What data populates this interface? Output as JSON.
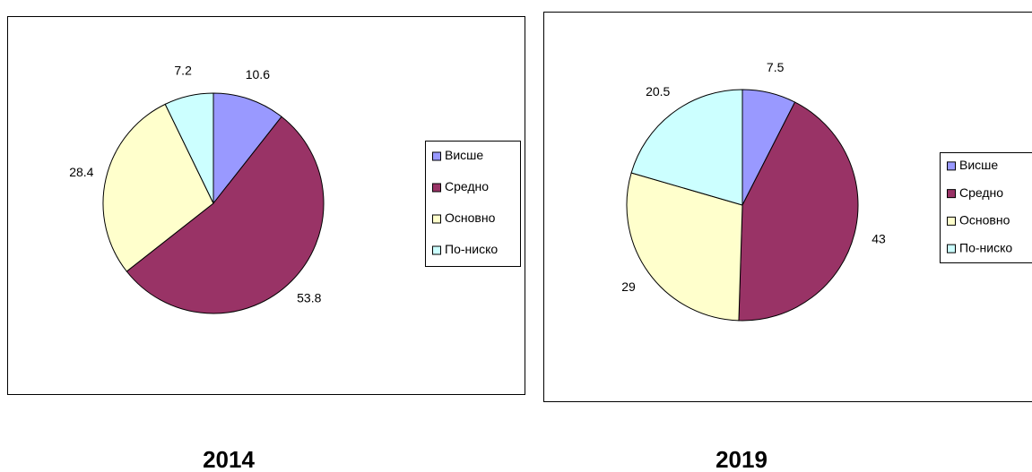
{
  "chart_data": [
    {
      "type": "pie",
      "title": "2014",
      "categories": [
        "Висше",
        "Средно",
        "Основно",
        "По-ниско"
      ],
      "values": [
        10.6,
        53.8,
        28.4,
        7.2
      ],
      "colors": [
        "#9999ff",
        "#993366",
        "#ffffcc",
        "#ccffff"
      ]
    },
    {
      "type": "pie",
      "title": "2019",
      "categories": [
        "Висше",
        "Средно",
        "Основно",
        "По-ниско"
      ],
      "values": [
        7.5,
        43,
        29,
        20.5
      ],
      "colors": [
        "#9999ff",
        "#993366",
        "#ffffcc",
        "#ccffff"
      ]
    }
  ]
}
